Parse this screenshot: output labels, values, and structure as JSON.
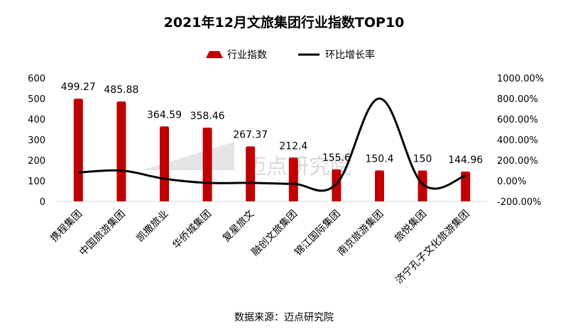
{
  "chart_data": {
    "type": "bar",
    "title": "2021年12月文旅集团行业指数TOP10",
    "categories": [
      "携程集团",
      "中国旅游集团",
      "凯撒旅业",
      "华侨城集团",
      "复星旅文",
      "融创文旅集团",
      "锦江国际集团",
      "南京旅游集团",
      "旅悦集团",
      "济宁孔子文化旅游集团"
    ],
    "series": [
      {
        "name": "行业指数",
        "type": "bar",
        "axis": "left",
        "color": "#c00000",
        "values": [
          499.27,
          485.88,
          364.59,
          358.46,
          267.37,
          212.4,
          155.6,
          150.4,
          150,
          144.96
        ],
        "labels": [
          "499.27",
          "485.88",
          "364.59",
          "358.46",
          "267.37",
          "212.4",
          "155.6",
          "150.4",
          "150",
          "144.96"
        ]
      },
      {
        "name": "环比增长率",
        "type": "line",
        "axis": "right",
        "color": "#000000",
        "values": [
          80,
          100,
          20,
          -20,
          -20,
          -30,
          -30,
          800,
          -30,
          50
        ]
      }
    ],
    "y_left": {
      "ylim": [
        0,
        600
      ],
      "ticks": [
        "0",
        "100",
        "200",
        "300",
        "400",
        "500",
        "600"
      ]
    },
    "y_right": {
      "ylim": [
        -200,
        1000
      ],
      "ticks": [
        "-200.00%",
        "0.00%",
        "200.00%",
        "400.00%",
        "600.00%",
        "800.00%",
        "1000.00%"
      ]
    },
    "grid": false,
    "legend": "top-center",
    "source": "数据来源：迈点研究院",
    "watermark": "迈点研究院",
    "watermark_logo_text": "迈点研究院"
  }
}
